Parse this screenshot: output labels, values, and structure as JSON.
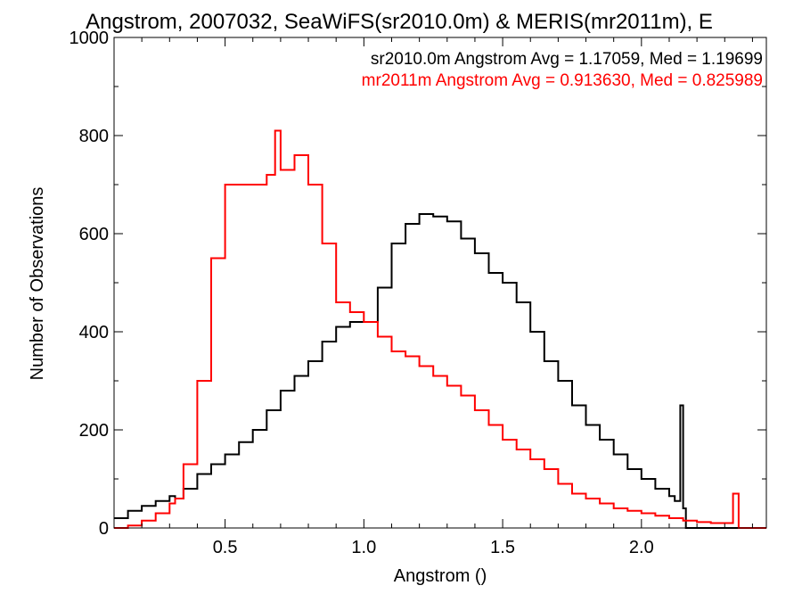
{
  "chart_data": {
    "type": "line",
    "title": "Angstrom, 2007032, SeaWiFS(sr2010.0m) & MERIS(mr2011m), E",
    "xlabel": "Angstrom ()",
    "ylabel": "Number of Observations",
    "xlim": [
      0.1,
      2.45
    ],
    "ylim": [
      0,
      1000
    ],
    "xticks": [
      0.5,
      1.0,
      1.5,
      2.0
    ],
    "xtick_labels": [
      "0.5",
      "1.0",
      "1.5",
      "2.0"
    ],
    "yticks": [
      0,
      200,
      400,
      600,
      800,
      1000
    ],
    "ytick_labels": [
      "0",
      "200",
      "400",
      "600",
      "800",
      "1000"
    ],
    "grid": false,
    "legend_position": "top-right",
    "annotations": [
      {
        "text": "sr2010.0m Angstrom Avg = 1.17059, Med = 1.19699",
        "color": "#000000"
      },
      {
        "text": "mr2011m Angstrom Avg = 0.913630, Med = 0.825989",
        "color": "#ff0000"
      }
    ],
    "series": [
      {
        "color": "#000000",
        "x": [
          0.1,
          0.15,
          0.2,
          0.25,
          0.3,
          0.32,
          0.35,
          0.4,
          0.45,
          0.5,
          0.55,
          0.6,
          0.65,
          0.7,
          0.75,
          0.8,
          0.85,
          0.9,
          0.95,
          1.0,
          1.05,
          1.1,
          1.15,
          1.2,
          1.25,
          1.3,
          1.35,
          1.4,
          1.45,
          1.5,
          1.55,
          1.6,
          1.65,
          1.7,
          1.75,
          1.8,
          1.85,
          1.9,
          1.95,
          2.0,
          2.05,
          2.1,
          2.12,
          2.14,
          2.15,
          2.16,
          2.2,
          2.3,
          2.45
        ],
        "y": [
          20,
          35,
          45,
          55,
          65,
          60,
          80,
          110,
          130,
          150,
          175,
          200,
          240,
          280,
          310,
          340,
          380,
          410,
          420,
          420,
          490,
          580,
          620,
          640,
          635,
          625,
          590,
          560,
          520,
          500,
          460,
          400,
          340,
          300,
          250,
          210,
          180,
          150,
          120,
          100,
          80,
          65,
          55,
          250,
          40,
          0,
          0,
          0,
          0
        ]
      },
      {
        "color": "#ff0000",
        "x": [
          0.1,
          0.15,
          0.2,
          0.25,
          0.3,
          0.32,
          0.35,
          0.4,
          0.45,
          0.5,
          0.55,
          0.6,
          0.65,
          0.68,
          0.7,
          0.75,
          0.8,
          0.85,
          0.9,
          0.95,
          1.0,
          1.05,
          1.1,
          1.15,
          1.2,
          1.25,
          1.3,
          1.35,
          1.4,
          1.45,
          1.5,
          1.55,
          1.6,
          1.65,
          1.7,
          1.75,
          1.8,
          1.85,
          1.9,
          1.95,
          2.0,
          2.05,
          2.1,
          2.15,
          2.2,
          2.25,
          2.3,
          2.32,
          2.33,
          2.35,
          2.45
        ],
        "y": [
          0,
          5,
          15,
          30,
          50,
          60,
          130,
          300,
          550,
          700,
          700,
          700,
          720,
          810,
          730,
          760,
          700,
          580,
          460,
          440,
          420,
          390,
          360,
          350,
          330,
          310,
          290,
          270,
          240,
          210,
          180,
          160,
          140,
          120,
          90,
          70,
          60,
          50,
          40,
          35,
          30,
          25,
          20,
          15,
          12,
          10,
          10,
          10,
          70,
          0,
          0
        ]
      }
    ]
  }
}
